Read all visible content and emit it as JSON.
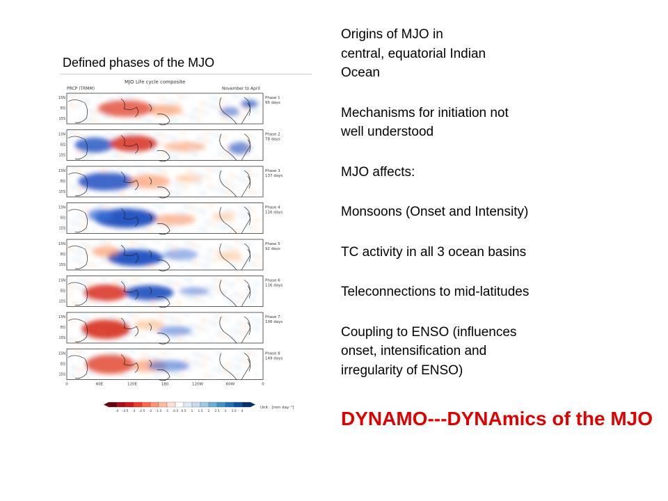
{
  "left": {
    "title": "Defined phases of the MJO",
    "figure": {
      "header_left": "PRCP (TRMM)",
      "header_center": "MJO Life cycle composite",
      "header_right": "November to April",
      "lat_labels": [
        "15N",
        "EQ",
        "15S"
      ],
      "lon_labels": [
        "0",
        "60E",
        "120E",
        "180",
        "120W",
        "60W",
        "0"
      ],
      "phases": [
        {
          "label": "Phase 1",
          "days": "95 days"
        },
        {
          "label": "Phase 2",
          "days": "78 days"
        },
        {
          "label": "Phase 3",
          "days": "137 days"
        },
        {
          "label": "Phase 4",
          "days": "116 days"
        },
        {
          "label": "Phase 5",
          "days": "92 days"
        },
        {
          "label": "Phase 6",
          "days": "116 days"
        },
        {
          "label": "Phase 7",
          "days": "106 days"
        },
        {
          "label": "Phase 8",
          "days": "149 days"
        }
      ],
      "colorbar_ticks": [
        "-4",
        "-3.5",
        "-3",
        "-2.5",
        "-2",
        "-1.5",
        "-1",
        "-0.5",
        "0.5",
        "1",
        "1.5",
        "2",
        "2.5",
        "3",
        "3.5",
        "4"
      ],
      "colorbar_unit": "Unit : [mm day⁻¹]",
      "colors": {
        "dry": "#d7301f",
        "wet": "#1d4fbf"
      }
    }
  },
  "right": {
    "p1": "Origins of MJO in",
    "p2": "central, equatorial Indian",
    "p3": "Ocean",
    "p4": "Mechanisms for initiation not",
    "p5": "well understood",
    "p6": "MJO affects:",
    "p7": "Monsoons (Onset and Intensity)",
    "p8": "TC activity in all 3 ocean basins",
    "p9": "Teleconnections to mid-latitudes",
    "p10": "Coupling to ENSO (influences",
    "p11": "onset, intensification and",
    "p12": "irregularity of ENSO)",
    "headline": "DYNAMO---DYNAmics of the MJO",
    "headline_color": "#e00000"
  }
}
